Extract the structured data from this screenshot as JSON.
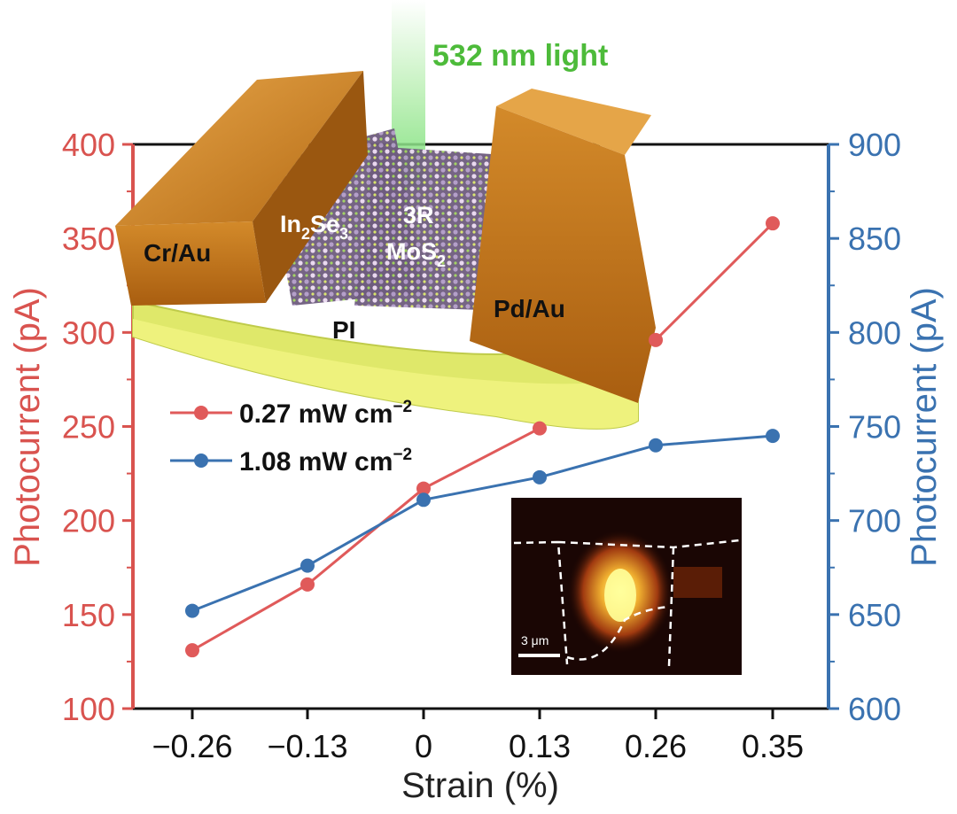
{
  "chart_data": {
    "type": "line",
    "x": [
      -0.26,
      -0.13,
      0,
      0.13,
      0.26,
      0.35
    ],
    "x_tick_labels": [
      "−0.26",
      "−0.13",
      "0",
      "0.13",
      "0.26",
      "0.35"
    ],
    "xlabel": "Strain (%)",
    "y_left": {
      "label": "Photocurrent (pA)",
      "ylim": [
        100,
        400
      ],
      "ticks": [
        100,
        150,
        200,
        250,
        300,
        350,
        400
      ],
      "color": "#d9534f"
    },
    "y_right": {
      "label": "Photocurrent (pA)",
      "ylim": [
        600,
        900
      ],
      "ticks": [
        600,
        650,
        700,
        750,
        800,
        850,
        900
      ],
      "color": "#3a72b0"
    },
    "series": [
      {
        "name": "0.27 mW cm",
        "superscript": "−2",
        "axis": "left",
        "color": "#e05a5a",
        "values": [
          131,
          166,
          217,
          249,
          296,
          358
        ]
      },
      {
        "name": "1.08 mW cm",
        "superscript": "−2",
        "axis": "right",
        "color": "#3a72b0",
        "values": [
          652,
          676,
          711,
          723,
          740,
          745
        ]
      }
    ],
    "legend_position": "middle-left",
    "annotations": {
      "light": "532 nm light",
      "left_electrode": "Cr/Au",
      "right_electrode": "Pd/Au",
      "substrate": "PI",
      "layer_a_main": "In",
      "layer_a_sub1": "2",
      "layer_a_mid": "Se",
      "layer_a_sub2": "3",
      "layer_b_top": "3R",
      "layer_b_main": "MoS",
      "layer_b_sub": "2",
      "inset_scale": "3 μm"
    }
  },
  "colors": {
    "left_axis": "#d9534f",
    "right_axis": "#3a72b0",
    "light": "#4dbb3a",
    "gold": "#c8801f",
    "substrate": "#dfe86a"
  }
}
